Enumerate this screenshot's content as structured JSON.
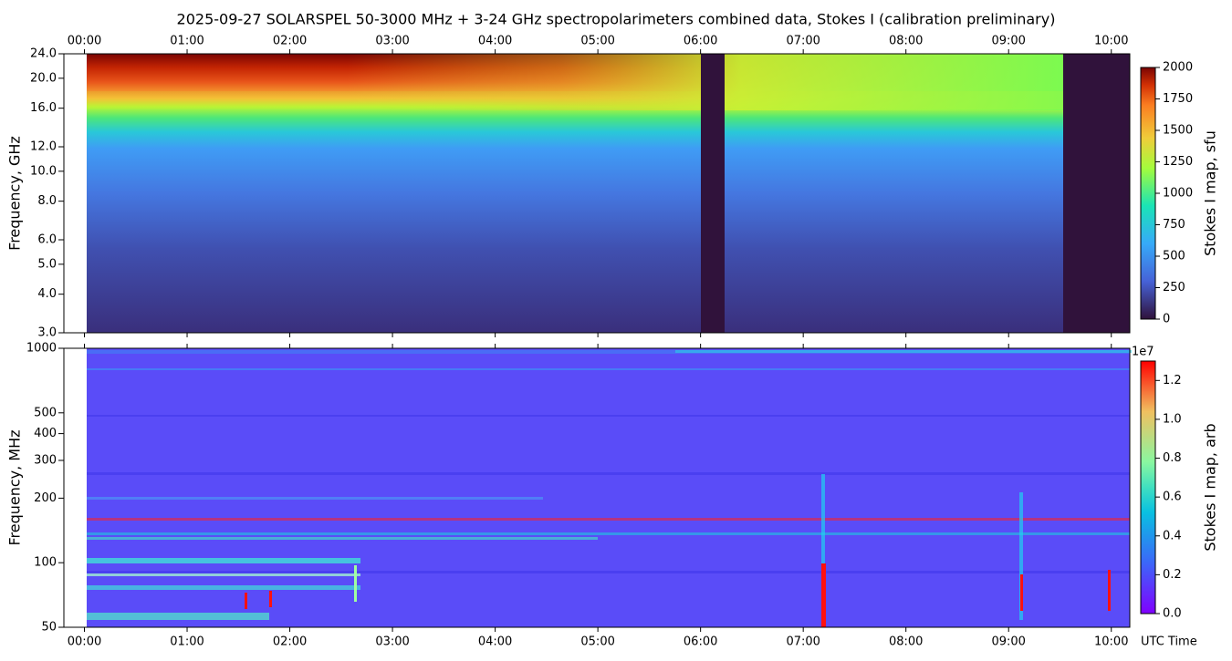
{
  "chart_data": [
    {
      "type": "heatmap",
      "title": "2025-09-27  SOLARSPEL  50-3000 MHz  +  3-24 GHz  spectropolarimeters combined data,  Stokes I  (calibration preliminary)",
      "y_label": "Frequency, GHz",
      "colorbar_label": "Stokes I map, sfu",
      "colormap": "turbo",
      "log_y": true,
      "x_axis_position": "top",
      "xlim": [
        -0.2,
        10.18
      ],
      "xticks": [
        {
          "value": 0,
          "label": "00:00"
        },
        {
          "value": 1,
          "label": "01:00"
        },
        {
          "value": 2,
          "label": "02:00"
        },
        {
          "value": 3,
          "label": "03:00"
        },
        {
          "value": 4,
          "label": "04:00"
        },
        {
          "value": 5,
          "label": "05:00"
        },
        {
          "value": 6,
          "label": "06:00"
        },
        {
          "value": 7,
          "label": "07:00"
        },
        {
          "value": 8,
          "label": "08:00"
        },
        {
          "value": 9,
          "label": "09:00"
        },
        {
          "value": 10,
          "label": "10:00"
        }
      ],
      "ylim": [
        3,
        24
      ],
      "yticks": [
        {
          "value": 3,
          "label": "3.0"
        },
        {
          "value": 4,
          "label": "4.0"
        },
        {
          "value": 5,
          "label": "5.0"
        },
        {
          "value": 6,
          "label": "6.0"
        },
        {
          "value": 8,
          "label": "8.0"
        },
        {
          "value": 10,
          "label": "10.0"
        },
        {
          "value": 12,
          "label": "12.0"
        },
        {
          "value": 16,
          "label": "16.0"
        },
        {
          "value": 20,
          "label": "20.0"
        },
        {
          "value": 24,
          "label": "24.0"
        }
      ],
      "clim": [
        0,
        2000
      ],
      "cticks": [
        0,
        250,
        500,
        750,
        1000,
        1250,
        1500,
        1750,
        2000
      ]
    },
    {
      "type": "heatmap",
      "y_label": "Frequency, MHz",
      "x_label": "UTC Time",
      "colorbar_label": "Stokes I map, arb",
      "colorbar_offset_label": "1e7",
      "colormap": "rainbow",
      "log_y": true,
      "x_axis_position": "bottom",
      "xlim": [
        -0.2,
        10.18
      ],
      "xticks": [
        {
          "value": 0,
          "label": "00:00"
        },
        {
          "value": 1,
          "label": "01:00"
        },
        {
          "value": 2,
          "label": "02:00"
        },
        {
          "value": 3,
          "label": "03:00"
        },
        {
          "value": 4,
          "label": "04:00"
        },
        {
          "value": 5,
          "label": "05:00"
        },
        {
          "value": 6,
          "label": "06:00"
        },
        {
          "value": 7,
          "label": "07:00"
        },
        {
          "value": 8,
          "label": "08:00"
        },
        {
          "value": 9,
          "label": "09:00"
        },
        {
          "value": 10,
          "label": "10:00"
        }
      ],
      "ylim": [
        50,
        1000
      ],
      "yticks": [
        50,
        100,
        200,
        300,
        400,
        500,
        1000
      ],
      "clim": [
        0,
        1.3
      ],
      "cticks": [
        {
          "value": 0,
          "label": "0.0"
        },
        0.2,
        0.4,
        0.6,
        0.8,
        {
          "value": 1,
          "label": "1.0"
        },
        1.2
      ]
    }
  ]
}
